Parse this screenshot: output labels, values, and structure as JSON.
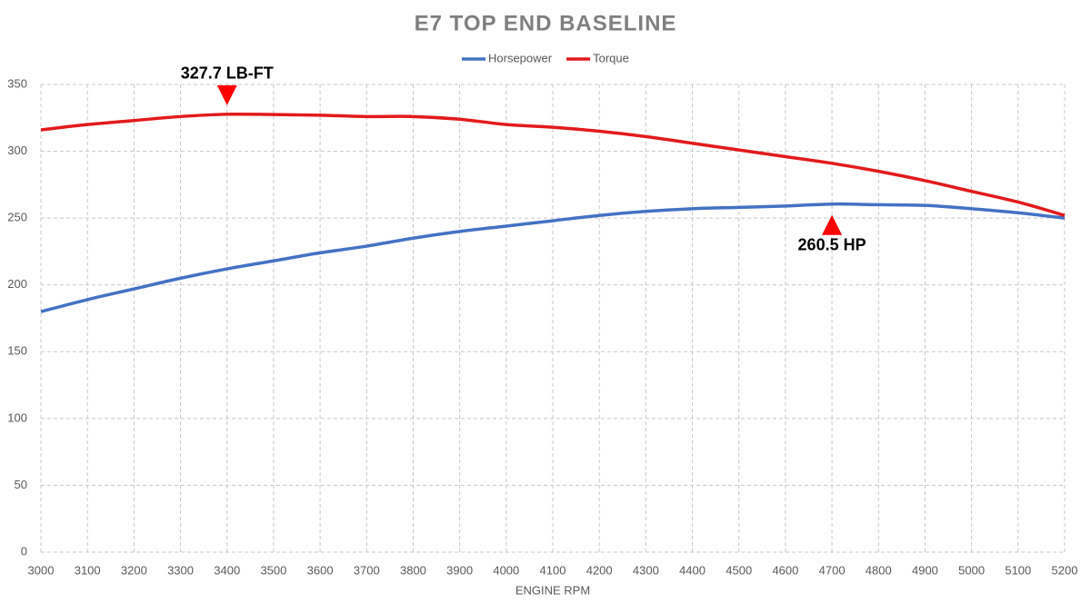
{
  "chart_data": {
    "type": "line",
    "title": "E7 TOP END BASELINE",
    "x_label": "ENGINE RPM",
    "x": [
      3000,
      3100,
      3200,
      3300,
      3400,
      3500,
      3600,
      3700,
      3800,
      3900,
      4000,
      4100,
      4200,
      4300,
      4400,
      4500,
      4600,
      4700,
      4800,
      4900,
      5000,
      5100,
      5200
    ],
    "series": [
      {
        "name": "Horsepower",
        "color": "#4472c4",
        "values": [
          180,
          189,
          197,
          205,
          212,
          218,
          224,
          229,
          235,
          240,
          244,
          248,
          252,
          255,
          257,
          258,
          259,
          260.5,
          260,
          259.5,
          257,
          254,
          250
        ]
      },
      {
        "name": "Torque",
        "color": "#e31a1c",
        "values": [
          316,
          320,
          323,
          326,
          327.7,
          327.5,
          327,
          326,
          326,
          324,
          320,
          318,
          315,
          311,
          306,
          301,
          296,
          291,
          285,
          278,
          270,
          262,
          252
        ]
      }
    ],
    "xlim": [
      3000,
      5200
    ],
    "xticks": [
      3000,
      3100,
      3200,
      3300,
      3400,
      3500,
      3600,
      3700,
      3800,
      3900,
      4000,
      4100,
      4200,
      4300,
      4400,
      4500,
      4600,
      4700,
      4800,
      4900,
      5000,
      5100,
      5200
    ],
    "ylim": [
      0,
      350
    ],
    "yticks": [
      0,
      50,
      100,
      150,
      200,
      250,
      300,
      350
    ],
    "grid": true,
    "legend": "top",
    "annotations": [
      {
        "text": "327.7 LB-FT",
        "x": 3400,
        "y": 327.7,
        "position": "above"
      },
      {
        "text": "260.5 HP",
        "x": 4700,
        "y": 260.5,
        "position": "below"
      }
    ],
    "annotation_color": "#ff0000"
  }
}
